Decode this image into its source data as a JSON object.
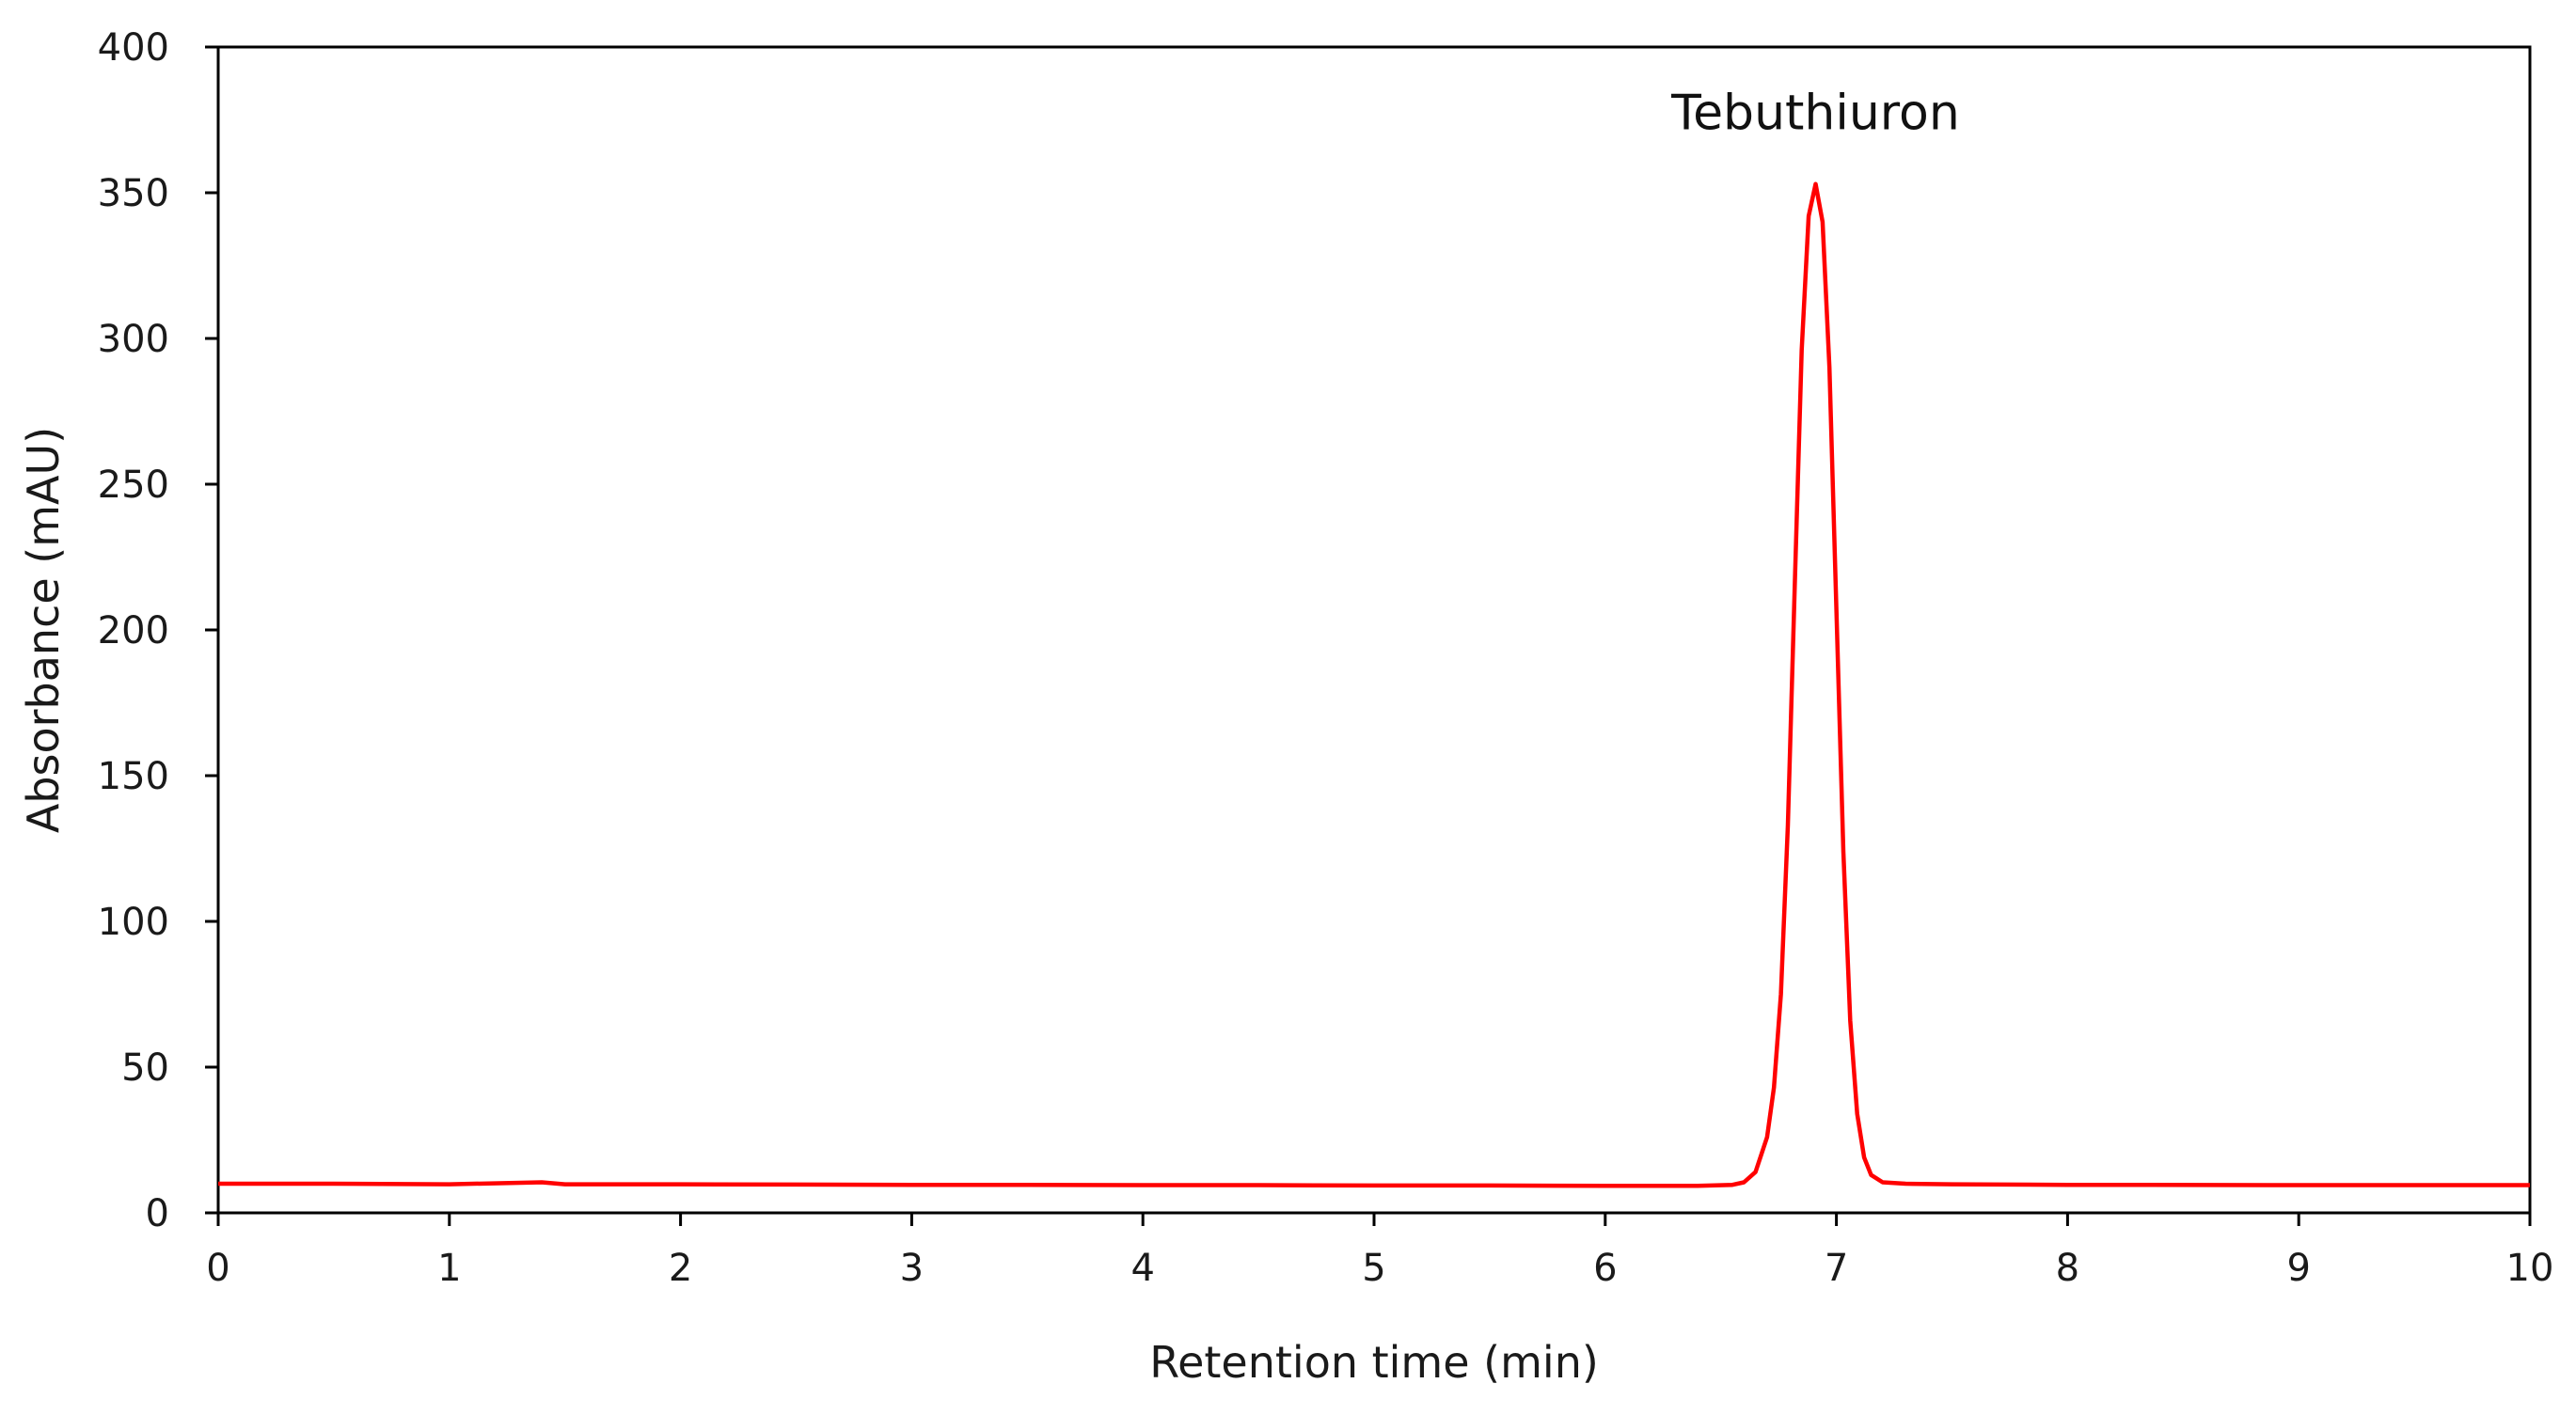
{
  "chart_data": {
    "type": "line",
    "title": "",
    "xlabel": "Retention time (min)",
    "ylabel": "Absorbance (mAU)",
    "xlim": [
      0,
      10
    ],
    "ylim": [
      0,
      400
    ],
    "x_ticks": [
      0,
      1,
      2,
      3,
      4,
      5,
      6,
      7,
      8,
      9,
      10
    ],
    "y_ticks": [
      0,
      50,
      100,
      150,
      200,
      250,
      300,
      350,
      400
    ],
    "grid": false,
    "legend": "none",
    "annotations": [
      {
        "text": "Tebuthiuron",
        "x": 6.91,
        "y": 353
      }
    ],
    "series": [
      {
        "color": "#ff0000",
        "x": [
          0,
          0.5,
          1.0,
          1.4,
          1.5,
          2.0,
          2.5,
          3.0,
          3.5,
          4.0,
          4.5,
          5.0,
          5.5,
          6.0,
          6.4,
          6.55,
          6.6,
          6.65,
          6.7,
          6.73,
          6.76,
          6.79,
          6.82,
          6.85,
          6.88,
          6.91,
          6.94,
          6.97,
          7.0,
          7.03,
          7.06,
          7.09,
          7.12,
          7.15,
          7.2,
          7.3,
          7.5,
          8.0,
          9.0,
          10.0
        ],
        "y": [
          10,
          10,
          9.8,
          10.5,
          9.8,
          9.8,
          9.7,
          9.6,
          9.6,
          9.5,
          9.5,
          9.4,
          9.4,
          9.3,
          9.3,
          9.6,
          10.5,
          14,
          26,
          43,
          75,
          133,
          216,
          296,
          342,
          353,
          340,
          290,
          207,
          124,
          66,
          34,
          19,
          13,
          10.5,
          10,
          9.8,
          9.6,
          9.5,
          9.5
        ]
      }
    ]
  }
}
